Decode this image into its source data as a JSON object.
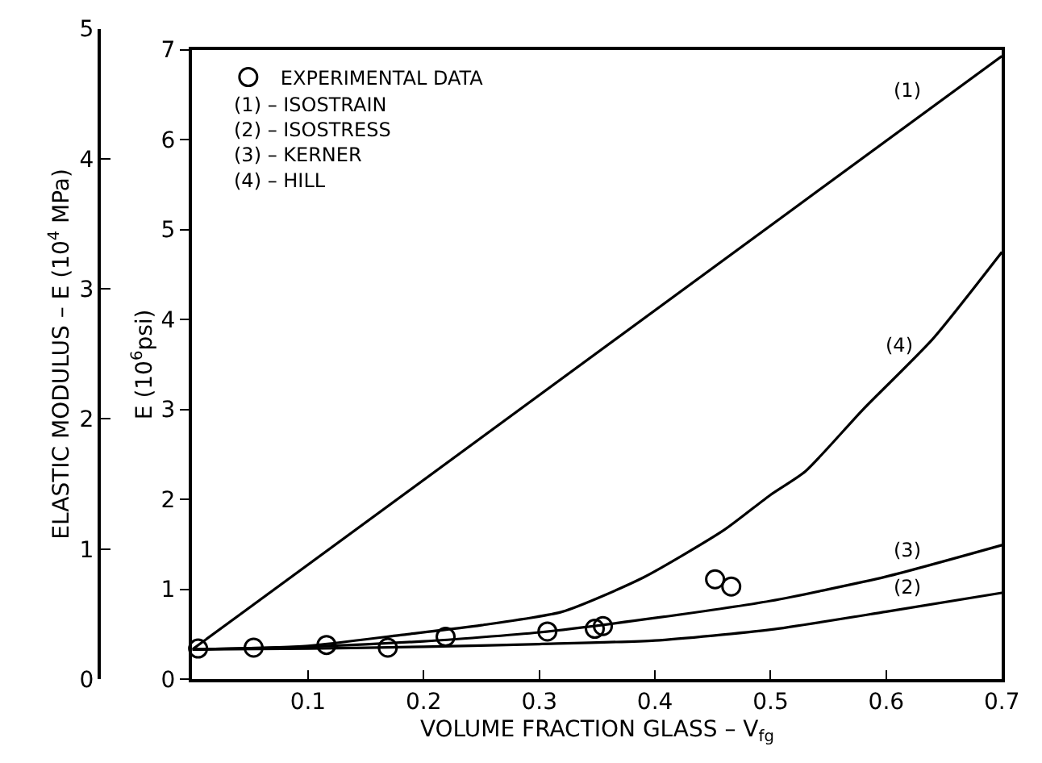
{
  "chart_data": {
    "type": "line",
    "xlabel": "VOLUME FRACTION GLASS – V$_{fg}$",
    "ylabel": "E (10$^{6}$psi)",
    "y2label": "ELASTIC MODULUS – E (10$^{4}$ MPa)",
    "xlim": [
      0,
      0.7
    ],
    "xticks": [
      0.1,
      0.2,
      0.3,
      0.4,
      0.5,
      0.6,
      0.7
    ],
    "ylim": [
      0,
      7
    ],
    "yticks": [
      0,
      1,
      2,
      3,
      4,
      5,
      6,
      7
    ],
    "y2lim": [
      0,
      5
    ],
    "y2ticks": [
      0,
      1,
      2,
      3,
      4,
      5
    ],
    "grid": false,
    "legend": "top left",
    "series": [
      {
        "name": "EXPERIMENTAL DATA",
        "type": "scatter",
        "marker": "circle",
        "color": "#000000",
        "x": [
          0.005,
          0.053,
          0.116,
          0.169,
          0.219,
          0.307,
          0.348,
          0.355,
          0.452,
          0.466
        ],
        "values": [
          0.34,
          0.35,
          0.38,
          0.35,
          0.47,
          0.53,
          0.56,
          0.59,
          1.11,
          1.03
        ]
      },
      {
        "color": "#000000",
        "x": [
          0,
          0.7
        ],
        "values": [
          0.33,
          6.93
        ]
      },
      {
        "color": "#000000",
        "x": [
          0,
          0.1,
          0.2,
          0.3,
          0.4,
          0.5,
          0.6,
          0.7
        ],
        "values": [
          0.33,
          0.34,
          0.36,
          0.39,
          0.43,
          0.55,
          0.75,
          0.96
        ]
      },
      {
        "color": "#000000",
        "x": [
          0,
          0.1,
          0.2,
          0.3,
          0.4,
          0.5,
          0.6,
          0.7
        ],
        "values": [
          0.33,
          0.36,
          0.42,
          0.52,
          0.68,
          0.87,
          1.14,
          1.49
        ]
      },
      {
        "color": "#000000",
        "x": [
          0,
          0.1,
          0.18,
          0.25,
          0.32,
          0.39,
          0.46,
          0.5,
          0.53,
          0.58,
          0.64,
          0.7
        ],
        "values": [
          0.33,
          0.37,
          0.49,
          0.6,
          0.75,
          1.13,
          1.66,
          2.05,
          2.31,
          3.0,
          3.78,
          4.75
        ]
      }
    ],
    "annotations": [
      "(1) – ISOSTRAIN\n(2) – ISOSTRESS\n(3) – KERNER\n(4) – HILL",
      "(1)",
      "(4)",
      "(3)",
      "(2)"
    ]
  }
}
